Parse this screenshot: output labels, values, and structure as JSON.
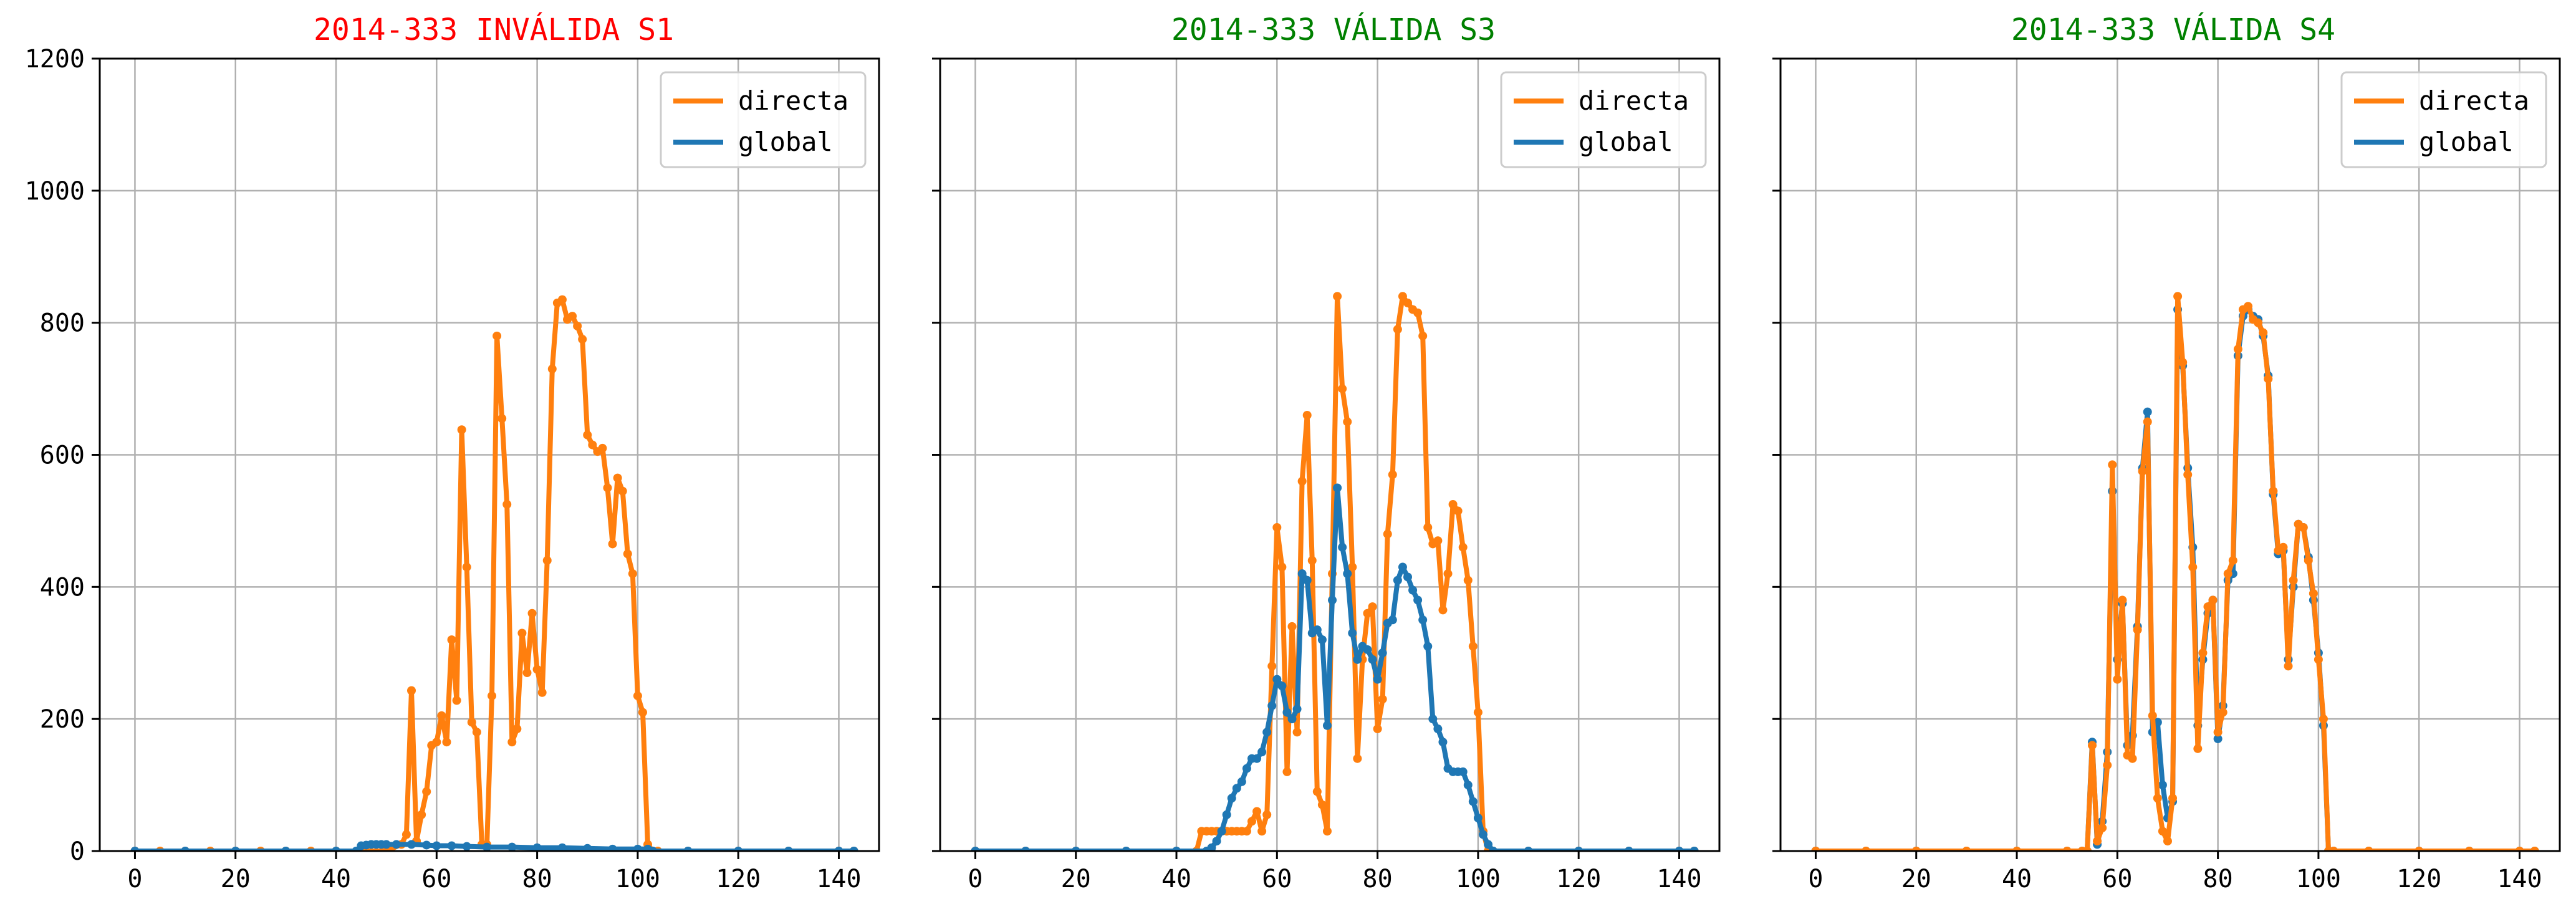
{
  "chart_data": [
    {
      "type": "line",
      "title": "2014-333 INVÁLIDA S1",
      "title_color": "#ff0000",
      "xlim": [
        -7,
        148
      ],
      "ylim": [
        0,
        1200
      ],
      "xticks": [
        0,
        20,
        40,
        60,
        80,
        100,
        120,
        140
      ],
      "yticks": [
        0,
        200,
        400,
        600,
        800,
        1000,
        1200
      ],
      "show_yticklabels": true,
      "grid": true,
      "legend": "top-right",
      "series": [
        {
          "name": "directa",
          "color": "#ff7f0e",
          "x": [
            0,
            5,
            10,
            15,
            20,
            25,
            30,
            35,
            40,
            45,
            50,
            53,
            54,
            55,
            56,
            57,
            58,
            59,
            60,
            61,
            62,
            63,
            64,
            65,
            66,
            67,
            68,
            69,
            70,
            71,
            72,
            73,
            74,
            75,
            76,
            77,
            78,
            79,
            80,
            81,
            82,
            83,
            84,
            85,
            86,
            87,
            88,
            89,
            90,
            91,
            92,
            93,
            94,
            95,
            96,
            97,
            98,
            99,
            100,
            101,
            102,
            103,
            104,
            110,
            120,
            130,
            140,
            143
          ],
          "y": [
            0,
            0,
            0,
            0,
            0,
            0,
            0,
            0,
            0,
            0,
            0,
            10,
            25,
            243,
            15,
            55,
            90,
            160,
            165,
            205,
            165,
            320,
            228,
            638,
            430,
            195,
            180,
            10,
            10,
            235,
            780,
            655,
            525,
            165,
            185,
            330,
            270,
            360,
            275,
            240,
            440,
            730,
            830,
            835,
            805,
            810,
            795,
            775,
            630,
            615,
            605,
            610,
            550,
            465,
            565,
            545,
            450,
            420,
            235,
            210,
            10,
            0,
            0,
            0,
            0,
            0,
            0,
            0
          ]
        },
        {
          "name": "global",
          "color": "#1f77b4",
          "x": [
            0,
            10,
            20,
            30,
            40,
            44,
            45,
            46,
            47,
            48,
            49,
            50,
            52,
            55,
            58,
            60,
            63,
            66,
            70,
            75,
            80,
            85,
            90,
            95,
            100,
            102,
            103,
            110,
            120,
            130,
            140,
            143
          ],
          "y": [
            0,
            0,
            0,
            0,
            0,
            0,
            8,
            9,
            10,
            10,
            10,
            10,
            10,
            10,
            9,
            8,
            8,
            7,
            6,
            6,
            5,
            5,
            4,
            3,
            3,
            3,
            0,
            0,
            0,
            0,
            0,
            0
          ]
        }
      ]
    },
    {
      "type": "line",
      "title": "2014-333 VÁLIDA S3",
      "title_color": "#008000",
      "xlim": [
        -7,
        148
      ],
      "ylim": [
        0,
        1200
      ],
      "xticks": [
        0,
        20,
        40,
        60,
        80,
        100,
        120,
        140
      ],
      "yticks": [
        0,
        200,
        400,
        600,
        800,
        1000,
        1200
      ],
      "show_yticklabels": false,
      "grid": true,
      "legend": "top-right",
      "series": [
        {
          "name": "directa",
          "color": "#ff7f0e",
          "x": [
            0,
            10,
            20,
            30,
            40,
            44,
            45,
            46,
            47,
            48,
            49,
            50,
            51,
            52,
            53,
            54,
            55,
            56,
            57,
            58,
            59,
            60,
            61,
            62,
            63,
            64,
            65,
            66,
            67,
            68,
            69,
            70,
            71,
            72,
            73,
            74,
            75,
            76,
            77,
            78,
            79,
            80,
            81,
            82,
            83,
            84,
            85,
            86,
            87,
            88,
            89,
            90,
            91,
            92,
            93,
            94,
            95,
            96,
            97,
            98,
            99,
            100,
            101,
            102,
            103,
            110,
            120,
            130,
            140,
            143
          ],
          "y": [
            0,
            0,
            0,
            0,
            0,
            0,
            30,
            30,
            30,
            30,
            30,
            30,
            30,
            30,
            30,
            30,
            45,
            60,
            30,
            55,
            280,
            490,
            430,
            120,
            340,
            180,
            560,
            660,
            440,
            90,
            70,
            30,
            420,
            840,
            700,
            650,
            430,
            140,
            290,
            360,
            370,
            185,
            230,
            480,
            570,
            790,
            840,
            830,
            820,
            815,
            780,
            490,
            465,
            470,
            365,
            420,
            525,
            515,
            460,
            410,
            310,
            210,
            30,
            0,
            0,
            0,
            0,
            0,
            0,
            0
          ]
        },
        {
          "name": "global",
          "color": "#1f77b4",
          "x": [
            0,
            10,
            20,
            30,
            40,
            46,
            47,
            48,
            49,
            50,
            51,
            52,
            53,
            54,
            55,
            56,
            57,
            58,
            59,
            60,
            61,
            62,
            63,
            64,
            65,
            66,
            67,
            68,
            69,
            70,
            71,
            72,
            73,
            74,
            75,
            76,
            77,
            78,
            79,
            80,
            81,
            82,
            83,
            84,
            85,
            86,
            87,
            88,
            89,
            90,
            91,
            92,
            93,
            94,
            95,
            96,
            97,
            98,
            99,
            100,
            101,
            102,
            103,
            110,
            120,
            130,
            140,
            143
          ],
          "y": [
            0,
            0,
            0,
            0,
            0,
            0,
            5,
            15,
            30,
            55,
            80,
            95,
            105,
            125,
            140,
            140,
            150,
            180,
            220,
            260,
            250,
            210,
            200,
            215,
            420,
            410,
            330,
            335,
            320,
            190,
            380,
            550,
            460,
            420,
            330,
            290,
            310,
            305,
            290,
            260,
            300,
            345,
            350,
            410,
            430,
            415,
            395,
            380,
            350,
            310,
            200,
            185,
            165,
            125,
            120,
            120,
            120,
            100,
            75,
            50,
            25,
            10,
            0,
            0,
            0,
            0,
            0,
            0
          ]
        }
      ]
    },
    {
      "type": "line",
      "title": "2014-333 VÁLIDA S4",
      "title_color": "#008000",
      "xlim": [
        -7,
        148
      ],
      "ylim": [
        0,
        1200
      ],
      "xticks": [
        0,
        20,
        40,
        60,
        80,
        100,
        120,
        140
      ],
      "yticks": [
        0,
        200,
        400,
        600,
        800,
        1000,
        1200
      ],
      "show_yticklabels": false,
      "grid": true,
      "legend": "top-right",
      "series": [
        {
          "name": "global",
          "color": "#1f77b4",
          "x": [
            0,
            10,
            20,
            30,
            40,
            50,
            53,
            54,
            55,
            56,
            57,
            58,
            59,
            60,
            61,
            62,
            63,
            64,
            65,
            66,
            67,
            68,
            69,
            70,
            71,
            72,
            73,
            74,
            75,
            76,
            77,
            78,
            79,
            80,
            81,
            82,
            83,
            84,
            85,
            86,
            87,
            88,
            89,
            90,
            91,
            92,
            93,
            94,
            95,
            96,
            97,
            98,
            99,
            100,
            101,
            102,
            103,
            110,
            120,
            130,
            140,
            143
          ],
          "y": [
            0,
            0,
            0,
            0,
            0,
            0,
            0,
            0,
            165,
            10,
            45,
            150,
            545,
            290,
            375,
            160,
            175,
            340,
            580,
            665,
            180,
            195,
            100,
            50,
            75,
            820,
            735,
            580,
            460,
            190,
            290,
            360,
            380,
            170,
            220,
            410,
            420,
            750,
            810,
            820,
            810,
            805,
            780,
            720,
            540,
            450,
            455,
            290,
            400,
            495,
            490,
            445,
            380,
            300,
            190,
            0,
            0,
            0,
            0,
            0,
            0,
            0
          ]
        },
        {
          "name": "directa",
          "color": "#ff7f0e",
          "x": [
            0,
            10,
            20,
            30,
            40,
            50,
            53,
            54,
            55,
            56,
            57,
            58,
            59,
            60,
            61,
            62,
            63,
            64,
            65,
            66,
            67,
            68,
            69,
            70,
            71,
            72,
            73,
            74,
            75,
            76,
            77,
            78,
            79,
            80,
            81,
            82,
            83,
            84,
            85,
            86,
            87,
            88,
            89,
            90,
            91,
            92,
            93,
            94,
            95,
            96,
            97,
            98,
            99,
            100,
            101,
            102,
            103,
            110,
            120,
            130,
            140,
            143
          ],
          "y": [
            0,
            0,
            0,
            0,
            0,
            0,
            0,
            0,
            160,
            15,
            35,
            130,
            585,
            260,
            380,
            145,
            140,
            335,
            575,
            650,
            205,
            80,
            30,
            15,
            80,
            840,
            740,
            570,
            430,
            155,
            300,
            370,
            380,
            180,
            210,
            420,
            440,
            760,
            820,
            825,
            805,
            800,
            785,
            715,
            545,
            455,
            460,
            280,
            410,
            495,
            490,
            440,
            390,
            290,
            200,
            0,
            0,
            0,
            0,
            0,
            0,
            0
          ]
        }
      ]
    }
  ]
}
